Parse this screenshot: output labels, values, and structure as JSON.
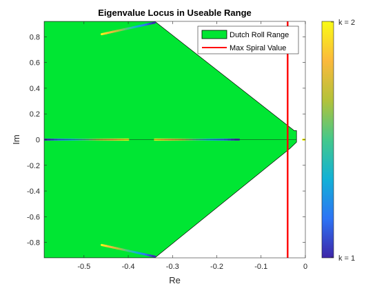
{
  "chart_data": {
    "type": "scatter",
    "title": "Eigenvalue Locus in Useable Range",
    "xlabel": "Re",
    "ylabel": "Im",
    "xlim": [
      -0.59,
      0.0
    ],
    "ylim": [
      -0.92,
      0.92
    ],
    "xticks": [
      -0.5,
      -0.4,
      -0.3,
      -0.2,
      -0.1,
      0
    ],
    "xtick_labels": [
      "-0.5",
      "-0.4",
      "-0.3",
      "-0.2",
      "-0.1",
      "0"
    ],
    "yticks": [
      0.8,
      0.6,
      0.4,
      0.2,
      0,
      -0.2,
      -0.4,
      -0.6,
      -0.8
    ],
    "ytick_labels": [
      "0.8",
      "0.6",
      "0.4",
      "0.2",
      "0",
      "-0.2",
      "-0.4",
      "-0.6",
      "-0.8"
    ],
    "grid": false,
    "legend_position": "top-right",
    "region": {
      "name": "Dutch Roll Range",
      "color": "#00e633",
      "polygon": [
        [
          -0.59,
          0.92
        ],
        [
          -0.34,
          0.92
        ],
        [
          -0.025,
          0.07
        ],
        [
          -0.02,
          0.07
        ],
        [
          -0.02,
          -0.02
        ],
        [
          -0.035,
          -0.07
        ],
        [
          -0.34,
          -0.92
        ],
        [
          -0.59,
          -0.92
        ]
      ]
    },
    "vertical_line": {
      "name": "Max Spiral Value",
      "x": -0.04,
      "color": "#ff0000"
    },
    "center_line": {
      "y": 0,
      "x_from": -0.59,
      "x_to": -0.02
    },
    "loci": [
      {
        "points": [
          [
            -0.46,
            0.82
          ],
          [
            -0.34,
            0.91
          ]
        ],
        "k": [
          2,
          1
        ]
      },
      {
        "points": [
          [
            -0.46,
            -0.82
          ],
          [
            -0.34,
            -0.91
          ]
        ],
        "k": [
          2,
          1
        ]
      },
      {
        "points": [
          [
            -0.59,
            0
          ],
          [
            -0.4,
            0
          ]
        ],
        "k": [
          1,
          2
        ]
      },
      {
        "points": [
          [
            -0.34,
            0
          ],
          [
            -0.15,
            0
          ]
        ],
        "k": [
          2,
          1
        ]
      },
      {
        "points": [
          [
            -0.005,
            0
          ],
          [
            0.0,
            0
          ]
        ],
        "k": [
          2,
          2
        ]
      }
    ],
    "colorbar": {
      "colors": [
        "#3e26a8",
        "#2d74f5",
        "#12b1d6",
        "#44c88b",
        "#b3c23a",
        "#fbb93c",
        "#f9fb15"
      ],
      "label_top": "k = 2",
      "label_bottom": "k = 1"
    }
  }
}
